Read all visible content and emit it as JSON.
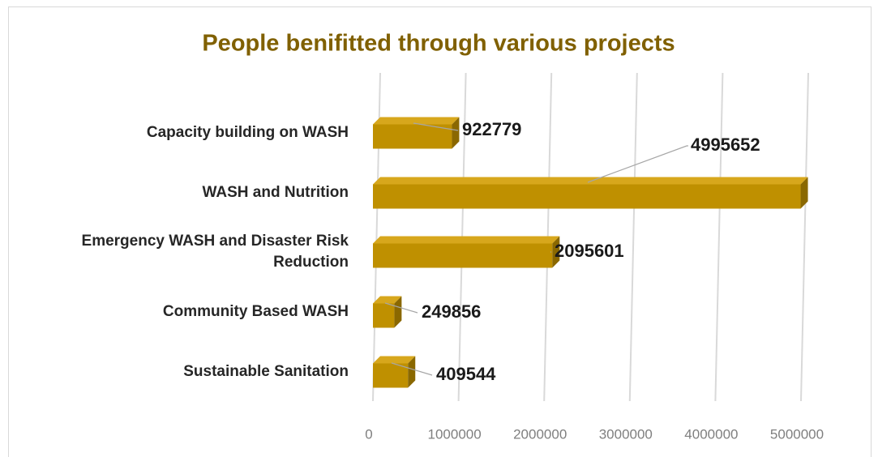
{
  "chart_data": {
    "type": "bar",
    "orientation": "horizontal",
    "title": "People benifitted through various projects",
    "categories": [
      "Capacity building on WASH",
      "WASH and Nutrition",
      "Emergency WASH and Disaster Risk Reduction",
      "Community Based WASH",
      "Sustainable Sanitation"
    ],
    "values": [
      922779,
      4995652,
      2095601,
      249856,
      409544
    ],
    "color": "#bf9000",
    "xlim": [
      0,
      5000000
    ],
    "xticks": [
      0,
      1000000,
      2000000,
      3000000,
      4000000,
      5000000
    ],
    "grid": true
  }
}
